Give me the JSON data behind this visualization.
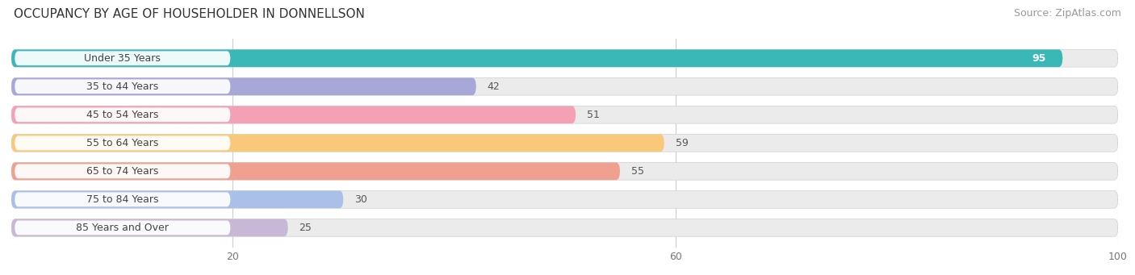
{
  "title": "OCCUPANCY BY AGE OF HOUSEHOLDER IN DONNELLSON",
  "source": "Source: ZipAtlas.com",
  "categories": [
    "Under 35 Years",
    "35 to 44 Years",
    "45 to 54 Years",
    "55 to 64 Years",
    "65 to 74 Years",
    "75 to 84 Years",
    "85 Years and Over"
  ],
  "values": [
    95,
    42,
    51,
    59,
    55,
    30,
    25
  ],
  "bar_colors": [
    "#3ab8b8",
    "#a8a8d8",
    "#f4a0b5",
    "#f9c87a",
    "#f0a090",
    "#aac0e8",
    "#c8b8d8"
  ],
  "bar_bg_color": "#ebebeb",
  "xlim": [
    0,
    100
  ],
  "xticks": [
    20,
    60,
    100
  ],
  "title_fontsize": 11,
  "source_fontsize": 9,
  "label_fontsize": 9,
  "value_fontsize": 9
}
